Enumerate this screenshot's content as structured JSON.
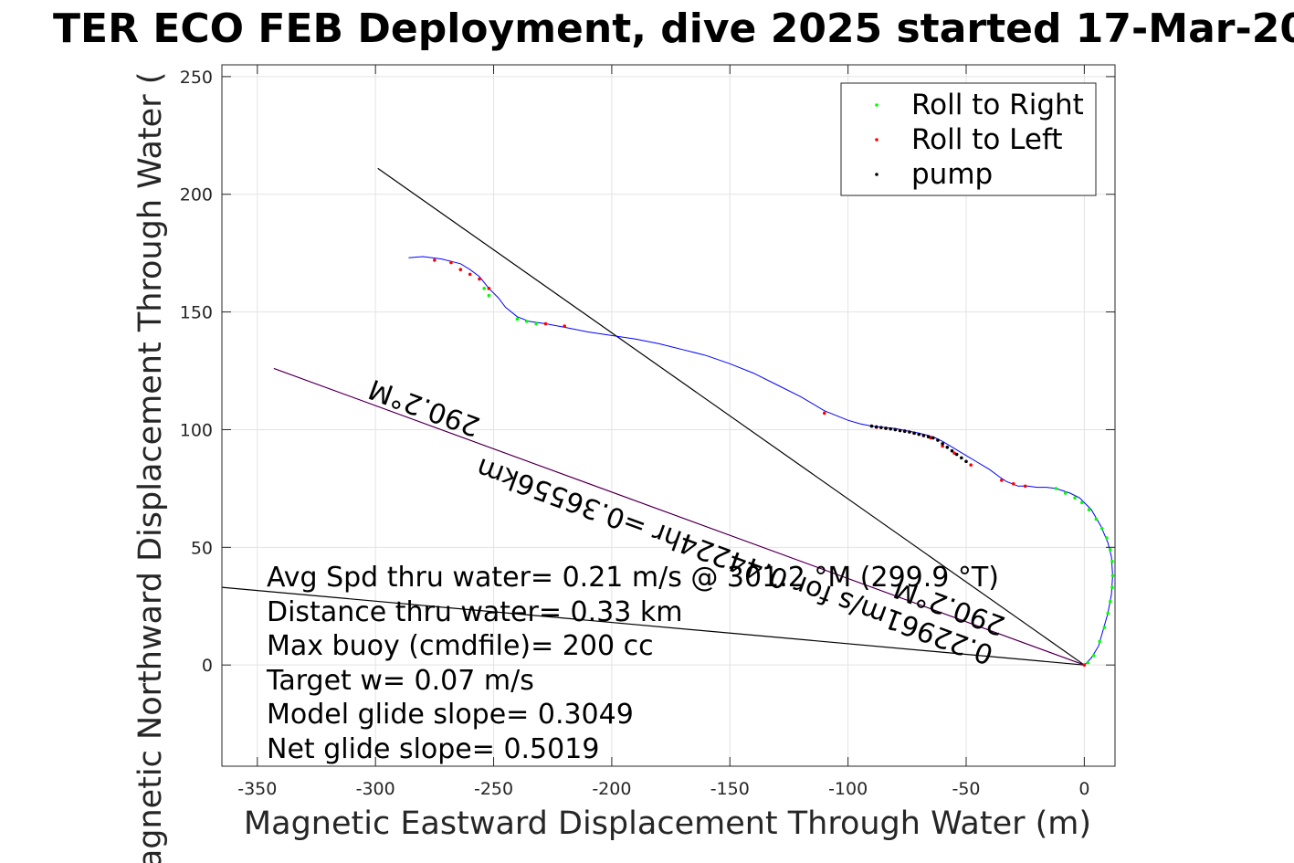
{
  "chart_data": {
    "type": "scatter",
    "title": "TER ECO FEB Deployment, dive 2025 started 17-Mar-20",
    "xlabel": "Magnetic Eastward Displacement Through Water (m)",
    "ylabel": "Magnetic Northward Displacement Through Water (",
    "xlim": [
      -365,
      13
    ],
    "ylim": [
      -43,
      255
    ],
    "xticks": [
      -350,
      -300,
      -250,
      -200,
      -150,
      -100,
      -50,
      0
    ],
    "yticks": [
      0,
      50,
      100,
      150,
      200,
      250
    ],
    "grid": true,
    "legend_position": "top-right",
    "legend": [
      {
        "label": "Roll to Right",
        "color": "#00ff00"
      },
      {
        "label": "Roll to Left",
        "color": "#ff0000"
      },
      {
        "label": "pump",
        "color": "#000000"
      }
    ],
    "track": {
      "color": "#0000ff",
      "x": [
        0,
        3,
        6,
        8,
        10,
        11.5,
        12,
        11.5,
        10,
        7,
        3,
        -2,
        -6,
        -12,
        -16,
        -20,
        -24,
        -28,
        -33,
        -36,
        -40,
        -45,
        -50,
        -55,
        -60,
        -63,
        -66,
        -70,
        -75,
        -80,
        -85,
        -90,
        -95,
        -100,
        -110,
        -120,
        -130,
        -140,
        -150,
        -160,
        -170,
        -180,
        -190,
        -200,
        -210,
        -220,
        -228,
        -235,
        -240,
        -245,
        -248,
        -252,
        -256,
        -260,
        -264,
        -268,
        -272,
        -276,
        -280,
        -286
      ],
      "y": [
        0,
        3,
        8,
        15,
        22,
        30,
        38,
        46,
        52,
        59,
        66,
        71,
        73,
        75,
        75.5,
        75.5,
        76,
        76,
        78,
        80,
        83,
        86,
        89,
        92,
        95,
        96.5,
        97.5,
        98.5,
        99.5,
        100.5,
        101,
        101.5,
        102.5,
        104,
        108,
        114,
        119,
        124,
        128,
        131.5,
        134,
        136.5,
        138.5,
        140,
        141.5,
        143.5,
        145,
        146,
        148,
        152,
        156,
        160,
        165,
        168,
        170.5,
        171.5,
        172.5,
        173,
        173.5,
        173
      ]
    },
    "roll_right": {
      "color": "#00ff00",
      "x": [
        1.5,
        4,
        6.5,
        8.5,
        10,
        11,
        11.8,
        12,
        11.8,
        11,
        9.5,
        7.5,
        5,
        2,
        -1,
        -4,
        -8,
        -12,
        -254,
        -252,
        -240,
        -236,
        -232
      ],
      "y": [
        1,
        4,
        10,
        16,
        22,
        27,
        33,
        38,
        44,
        49,
        54,
        58,
        62,
        66,
        69,
        71,
        73,
        75,
        160,
        157,
        147,
        146,
        145
      ]
    },
    "roll_left": {
      "color": "#ff0000",
      "x": [
        0,
        -25,
        -30,
        -35,
        -48,
        -55,
        -60,
        -65,
        -68,
        -72,
        -76,
        -80,
        -84,
        -88,
        -110,
        -220,
        -228,
        -252,
        -256,
        -260,
        -264,
        -268,
        -275
      ],
      "y": [
        0,
        76,
        77,
        78.5,
        85,
        90,
        93,
        96.5,
        97.5,
        98.5,
        99.5,
        100,
        100.5,
        101,
        107,
        144,
        145,
        160,
        164,
        166,
        168,
        171,
        172
      ]
    },
    "pump": {
      "color": "#000000",
      "x": [
        -50,
        -52,
        -54,
        -56,
        -58,
        -60,
        -62,
        -64,
        -66,
        -68,
        -70,
        -72,
        -74,
        -76,
        -78,
        -80,
        -82,
        -84,
        -86,
        -88,
        -90
      ],
      "y": [
        86.5,
        88,
        89.5,
        91,
        92.5,
        94,
        95.5,
        96.5,
        97,
        97.5,
        98,
        98.5,
        99,
        99.3,
        99.6,
        100,
        100.3,
        100.6,
        100.9,
        101.2,
        101.5
      ]
    },
    "lines": [
      {
        "name": "",
        "color": "#000000",
        "x": [
          0,
          -299
        ],
        "y": [
          0,
          211
        ]
      },
      {
        "name": "",
        "color": "#000000",
        "x": [
          0,
          -365
        ],
        "y": [
          0,
          33
        ]
      },
      {
        "name": "",
        "color": "#ff00ff",
        "x": [
          0,
          -343
        ],
        "y": [
          0,
          126
        ]
      },
      {
        "name": "",
        "color": "#000000",
        "x": [
          0,
          -343
        ],
        "y": [
          0,
          126
        ],
        "width": 0.8
      }
    ],
    "annotations": {
      "heading_far": "290.2°M",
      "heading_near": "290.2°M",
      "rate": "0.22961m/s for 0.44224hr =0.36556km"
    },
    "stats": [
      "Avg Spd thru water=  0.21 m/s @ 301.2 °M (299.9 °T)",
      "Distance thru water=  0.33 km",
      "Max buoy (cmdfile)= 200 cc",
      "Target w= 0.07 m/s",
      "Model glide slope= 0.3049",
      "Net glide slope= 0.5019"
    ]
  }
}
